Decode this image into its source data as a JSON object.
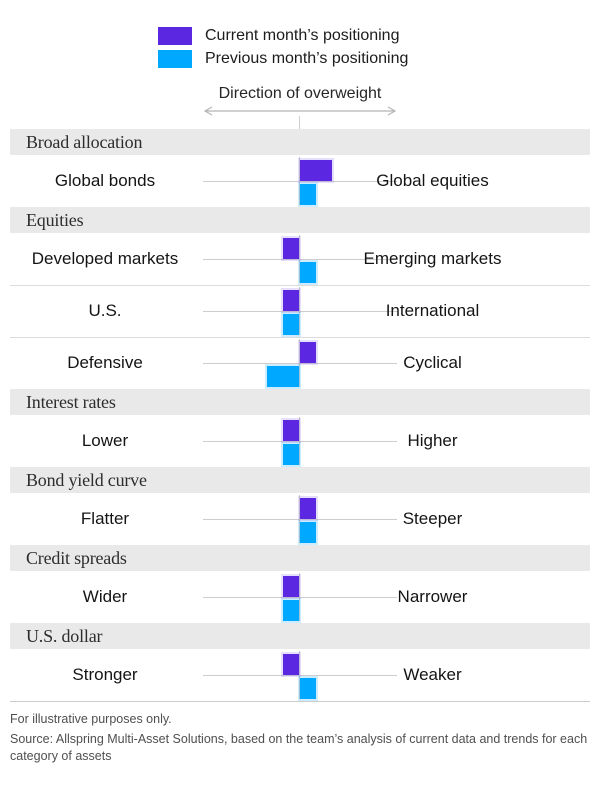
{
  "legend": {
    "items": [
      {
        "series": "current",
        "label": "Current month’s positioning"
      },
      {
        "series": "previous",
        "label": "Previous month’s positioning"
      }
    ]
  },
  "direction_label": "Direction of overweight",
  "chart_data": {
    "type": "bar",
    "subtype": "diverging-horizontal",
    "title": "Direction of overweight",
    "legend_position": "top",
    "series_names": [
      "Current month’s positioning",
      "Previous month’s positioning"
    ],
    "colors": {
      "current": "#5b27e0",
      "previous": "#00a9ff"
    },
    "unit": "relative overweight steps; positive = toward right-hand label, negative = toward left-hand label",
    "value_range": [
      -2,
      2
    ],
    "sections": [
      {
        "title": "Broad allocation",
        "rows": [
          {
            "left": "Global bonds",
            "right": "Global equities",
            "current": 2,
            "previous": 1
          }
        ]
      },
      {
        "title": "Equities",
        "rows": [
          {
            "left": "Developed markets",
            "right": "Emerging markets",
            "current": -1,
            "previous": 1
          },
          {
            "left": "U.S.",
            "right": "International",
            "current": -1,
            "previous": -1
          },
          {
            "left": "Defensive",
            "right": "Cyclical",
            "current": 1,
            "previous": -2
          }
        ]
      },
      {
        "title": "Interest rates",
        "rows": [
          {
            "left": "Lower",
            "right": "Higher",
            "current": -1,
            "previous": -1
          }
        ]
      },
      {
        "title": "Bond yield curve",
        "rows": [
          {
            "left": "Flatter",
            "right": "Steeper",
            "current": 1,
            "previous": 1
          }
        ]
      },
      {
        "title": "Credit spreads",
        "rows": [
          {
            "left": "Wider",
            "right": "Narrower",
            "current": -1,
            "previous": -1
          }
        ]
      },
      {
        "title": "U.S. dollar",
        "rows": [
          {
            "left": "Stronger",
            "right": "Weaker",
            "current": -1,
            "previous": 1
          }
        ]
      }
    ]
  },
  "footer": {
    "line1": "For illustrative purposes only.",
    "line2": "Source: Allspring Multi-Asset Solutions, based on the team’s analysis of current data and trends for each category of assets"
  }
}
